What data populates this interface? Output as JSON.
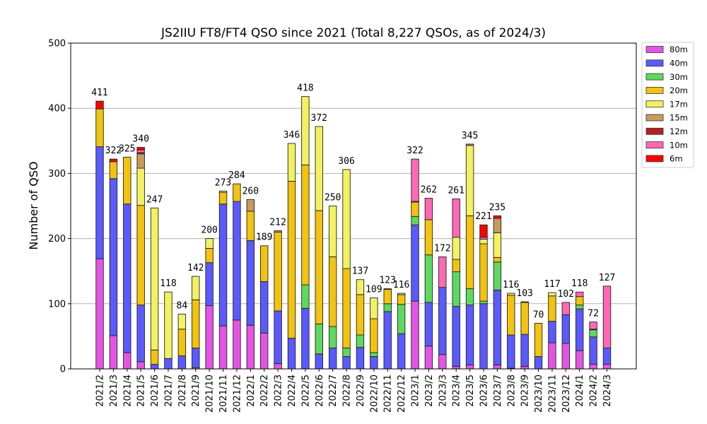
{
  "chart_data": {
    "type": "bar",
    "stacked": true,
    "title": "JS2IIU FT8/FT4 QSO since 2021 (Total 8,227 QSOs, as of 2024/3)",
    "xlabel": "",
    "ylabel": "Number of QSO",
    "ylim": [
      0,
      500
    ],
    "yticks": [
      0,
      100,
      200,
      300,
      400,
      500
    ],
    "grid": "horizontal",
    "legend_position": "right-outside-top",
    "categories": [
      "2021/2",
      "2021/3",
      "2021/4",
      "2021/5",
      "2021/6",
      "2021/7",
      "2021/8",
      "2021/9",
      "2021/10",
      "2021/11",
      "2021/12",
      "2022/1",
      "2022/2",
      "2022/3",
      "2022/4",
      "2022/5",
      "2022/6",
      "2022/7",
      "2022/8",
      "2022/9",
      "2022/10",
      "2022/11",
      "2022/12",
      "2023/1",
      "2023/2",
      "2023/3",
      "2023/4",
      "2023/5",
      "2023/6",
      "2023/7",
      "2023/8",
      "2023/9",
      "2023/10",
      "2023/11",
      "2023/12",
      "2024/1",
      "2024/2",
      "2024/3"
    ],
    "totals": [
      411,
      322,
      325,
      340,
      247,
      118,
      84,
      142,
      200,
      273,
      284,
      260,
      189,
      212,
      346,
      418,
      372,
      250,
      306,
      137,
      109,
      123,
      116,
      322,
      262,
      172,
      261,
      345,
      221,
      235,
      116,
      103,
      70,
      117,
      102,
      118,
      72,
      127
    ],
    "series": [
      {
        "name": "80m",
        "color": "#e454e4",
        "values": [
          169,
          51,
          25,
          11,
          0,
          0,
          0,
          2,
          97,
          66,
          75,
          67,
          55,
          8,
          0,
          0,
          0,
          0,
          0,
          0,
          0,
          0,
          0,
          104,
          35,
          22,
          4,
          6,
          0,
          6,
          1,
          4,
          0,
          40,
          39,
          28,
          7,
          7
        ]
      },
      {
        "name": "40m",
        "color": "#5a5aff",
        "values": [
          172,
          241,
          228,
          87,
          7,
          16,
          20,
          30,
          66,
          187,
          182,
          130,
          79,
          81,
          47,
          93,
          23,
          32,
          19,
          33,
          19,
          88,
          54,
          117,
          67,
          103,
          92,
          92,
          100,
          115,
          51,
          49,
          19,
          33,
          44,
          64,
          42,
          25
        ]
      },
      {
        "name": "30m",
        "color": "#5fd85f",
        "values": [
          0,
          0,
          0,
          0,
          0,
          0,
          0,
          0,
          0,
          0,
          0,
          0,
          0,
          0,
          0,
          36,
          46,
          33,
          13,
          19,
          6,
          12,
          45,
          13,
          73,
          0,
          53,
          25,
          4,
          43,
          0,
          0,
          0,
          0,
          0,
          6,
          11,
          0
        ]
      },
      {
        "name": "20m",
        "color": "#f2c30f",
        "values": [
          58,
          26,
          72,
          153,
          22,
          0,
          41,
          74,
          22,
          18,
          27,
          45,
          55,
          121,
          241,
          184,
          174,
          107,
          122,
          62,
          52,
          22,
          15,
          22,
          54,
          0,
          19,
          112,
          88,
          7,
          61,
          49,
          51,
          39,
          0,
          13,
          0,
          0
        ]
      },
      {
        "name": "17m",
        "color": "#f2f261",
        "values": [
          0,
          0,
          0,
          57,
          218,
          102,
          23,
          36,
          15,
          2,
          0,
          0,
          0,
          0,
          58,
          105,
          129,
          78,
          152,
          23,
          32,
          1,
          2,
          0,
          0,
          0,
          34,
          108,
          7,
          38,
          3,
          0,
          0,
          5,
          0,
          0,
          0,
          0
        ]
      },
      {
        "name": "15m",
        "color": "#c99a5e",
        "values": [
          0,
          0,
          0,
          22,
          0,
          0,
          0,
          0,
          0,
          0,
          0,
          18,
          0,
          2,
          0,
          0,
          0,
          0,
          0,
          0,
          0,
          0,
          0,
          0,
          0,
          0,
          0,
          0,
          0,
          22,
          0,
          0,
          0,
          0,
          0,
          0,
          0,
          0
        ]
      },
      {
        "name": "12m",
        "color": "#b22222",
        "values": [
          0,
          0,
          0,
          2,
          0,
          0,
          0,
          0,
          0,
          0,
          0,
          0,
          0,
          0,
          0,
          0,
          0,
          0,
          0,
          0,
          0,
          0,
          0,
          1,
          0,
          0,
          0,
          0,
          0,
          0,
          0,
          1,
          0,
          0,
          0,
          0,
          1,
          0
        ]
      },
      {
        "name": "10m",
        "color": "#ff69b4",
        "values": [
          0,
          0,
          0,
          4,
          0,
          0,
          0,
          0,
          0,
          0,
          0,
          0,
          0,
          0,
          0,
          0,
          0,
          0,
          0,
          0,
          0,
          0,
          0,
          65,
          33,
          47,
          59,
          2,
          3,
          0,
          0,
          0,
          0,
          0,
          19,
          7,
          11,
          95
        ]
      },
      {
        "name": "6m",
        "color": "#ff0000",
        "values": [
          12,
          4,
          0,
          4,
          0,
          0,
          0,
          0,
          0,
          0,
          0,
          0,
          0,
          0,
          0,
          0,
          0,
          0,
          0,
          0,
          0,
          0,
          0,
          0,
          0,
          0,
          0,
          0,
          19,
          4,
          0,
          0,
          0,
          0,
          0,
          0,
          0,
          0
        ]
      }
    ]
  }
}
